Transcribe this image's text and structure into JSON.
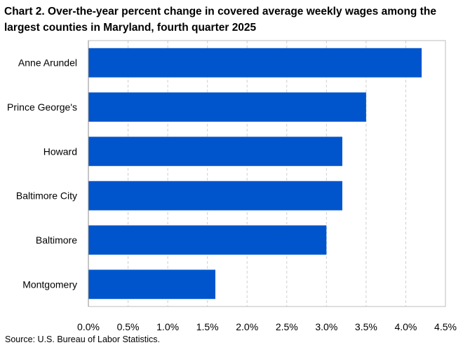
{
  "chart_data": {
    "type": "bar",
    "orientation": "horizontal",
    "title": "Chart 2. Over-the-year percent change in covered average weekly wages among the largest counties in Maryland, fourth quarter 2025",
    "categories": [
      "Anne Arundel",
      "Prince George's",
      "Howard",
      "Baltimore City",
      "Baltimore",
      "Montgomery"
    ],
    "values": [
      4.2,
      3.5,
      3.2,
      3.2,
      3.0,
      1.6
    ],
    "xlim": [
      0,
      4.5
    ],
    "xticks": [
      0.0,
      0.5,
      1.0,
      1.5,
      2.0,
      2.5,
      3.0,
      3.5,
      4.0,
      4.5
    ],
    "xtick_labels": [
      "0.0%",
      "0.5%",
      "1.0%",
      "1.5%",
      "2.0%",
      "2.5%",
      "3.0%",
      "3.5%",
      "4.0%",
      "4.5%"
    ],
    "xlabel": "",
    "ylabel": "",
    "grid": "vertical dashed",
    "legend": "none",
    "bar_color": "#0055cc",
    "source": "Source: U.S. Bureau of Labor Statistics."
  }
}
